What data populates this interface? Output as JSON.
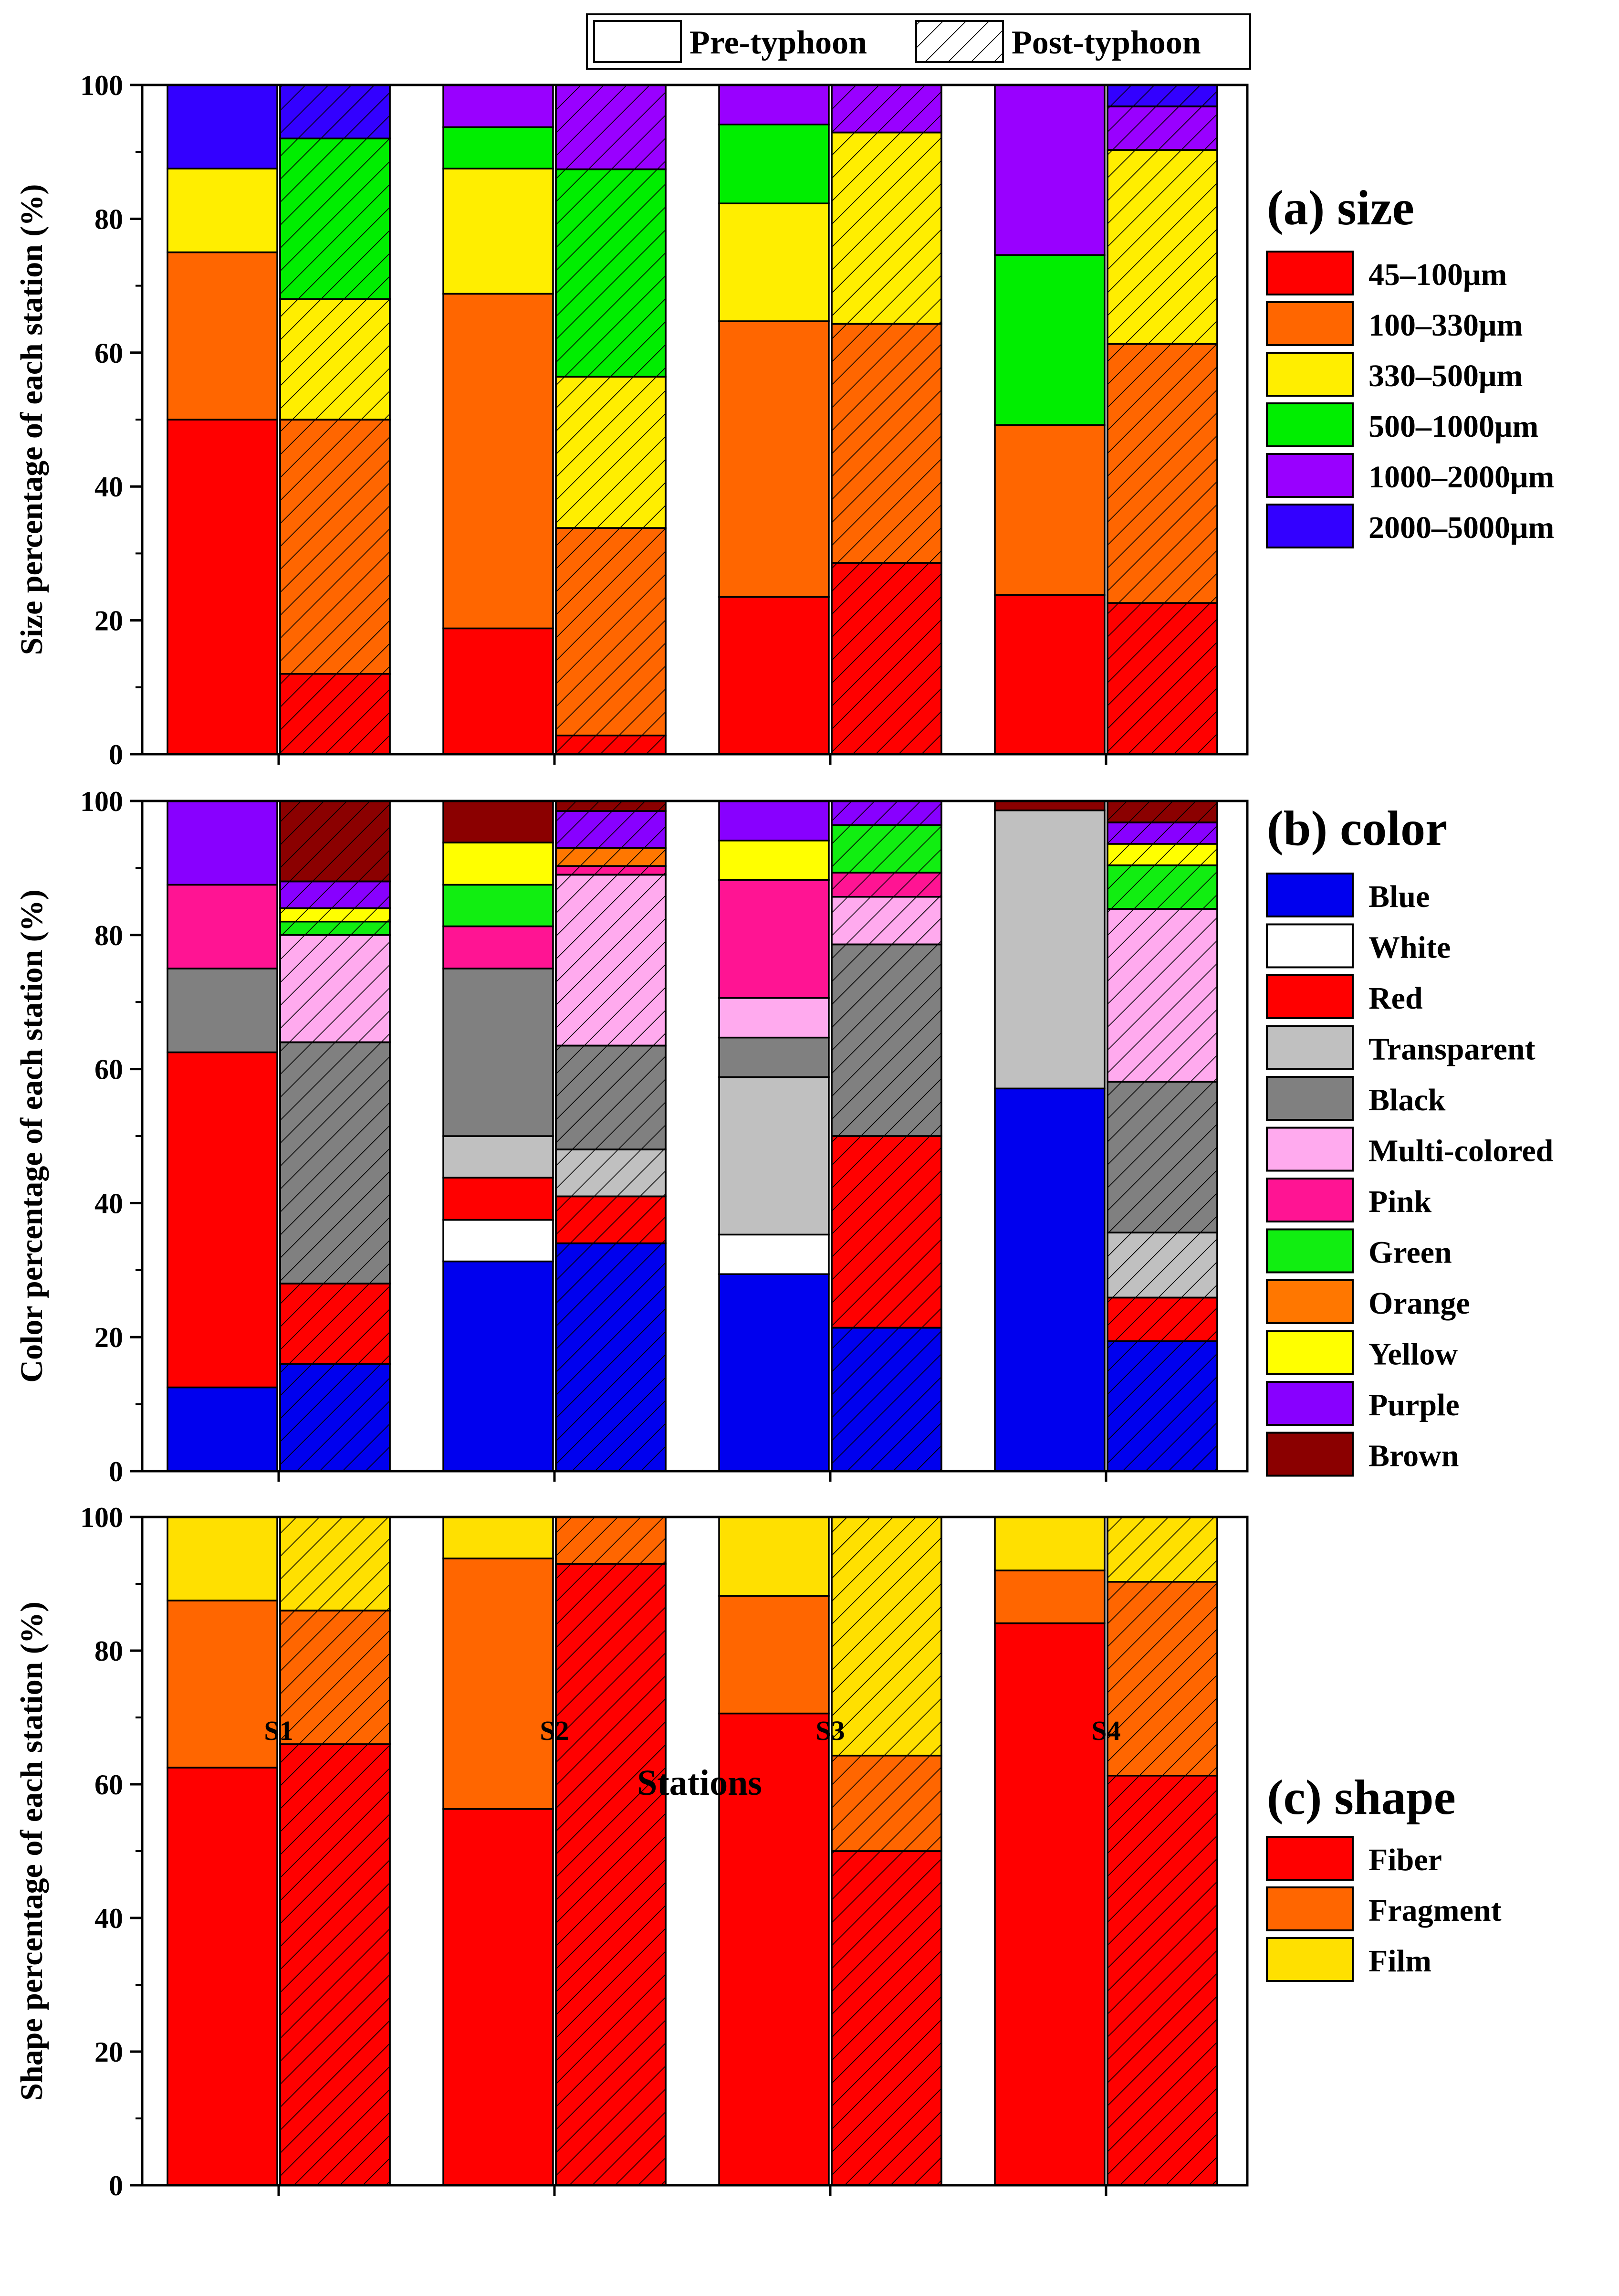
{
  "figure": {
    "xlabel": "Stations",
    "stations": [
      "S1",
      "S2",
      "S3",
      "S4"
    ],
    "hatch_legend": {
      "pre": "Pre-typhoon",
      "post": "Post-typhoon"
    },
    "y_ticks": [
      0,
      20,
      40,
      60,
      80,
      100
    ]
  },
  "chart_data": [
    {
      "id": "size",
      "type": "bar",
      "stacked": true,
      "title": "(a) size",
      "ylabel": "Size percentage of each station (%)",
      "xlabel": "Stations",
      "ylim": [
        0,
        100
      ],
      "categories": [
        "S1",
        "S2",
        "S3",
        "S4"
      ],
      "periods": [
        "Pre-typhoon",
        "Post-typhoon"
      ],
      "series": [
        {
          "name": "45–100μm",
          "color": "#FF0000",
          "pre": [
            50,
            18.8,
            23.5,
            23.8
          ],
          "post": [
            12,
            2.8,
            28.6,
            22.6
          ]
        },
        {
          "name": "100–330μm",
          "color": "#FF6600",
          "pre": [
            25,
            50,
            41.2,
            25.4
          ],
          "post": [
            38,
            31,
            35.7,
            38.7
          ]
        },
        {
          "name": "330–500μm",
          "color": "#FFEE00",
          "pre": [
            12.5,
            18.7,
            17.6,
            0
          ],
          "post": [
            18,
            22.6,
            28.6,
            29
          ]
        },
        {
          "name": "500–1000μm",
          "color": "#00EE00",
          "pre": [
            0,
            6.2,
            11.8,
            25.4
          ],
          "post": [
            24,
            31,
            0,
            0
          ]
        },
        {
          "name": "1000–2000μm",
          "color": "#9900FF",
          "pre": [
            0,
            6.3,
            5.9,
            25.4
          ],
          "post": [
            0,
            12.6,
            7.1,
            6.5
          ]
        },
        {
          "name": "2000–5000μm",
          "color": "#3300FF",
          "pre": [
            12.5,
            0,
            0,
            0
          ],
          "post": [
            8,
            0,
            0,
            3.2
          ]
        }
      ]
    },
    {
      "id": "color",
      "type": "bar",
      "stacked": true,
      "title": "(b) color",
      "ylabel": "Color percentage of each station (%)",
      "xlabel": "Stations",
      "ylim": [
        0,
        100
      ],
      "categories": [
        "S1",
        "S2",
        "S3",
        "S4"
      ],
      "periods": [
        "Pre-typhoon",
        "Post-typhoon"
      ],
      "series": [
        {
          "name": "Blue",
          "color": "#0000EE",
          "pre": [
            12.5,
            31.3,
            29.4,
            57.1
          ],
          "post": [
            16,
            34,
            21.4,
            19.4
          ]
        },
        {
          "name": "White",
          "color": "#FFFFFF",
          "pre": [
            0,
            6.2,
            5.9,
            0
          ],
          "post": [
            0,
            0,
            0,
            0
          ]
        },
        {
          "name": "Red",
          "color": "#FF0000",
          "pre": [
            50,
            6.3,
            0,
            0
          ],
          "post": [
            12,
            7,
            28.6,
            6.5
          ]
        },
        {
          "name": "Transparent",
          "color": "#C0C0C0",
          "pre": [
            0,
            6.2,
            23.5,
            41.5
          ],
          "post": [
            0,
            7,
            0,
            9.7
          ]
        },
        {
          "name": "Black",
          "color": "#808080",
          "pre": [
            12.5,
            25,
            5.9,
            0
          ],
          "post": [
            36,
            15.5,
            28.6,
            22.5
          ]
        },
        {
          "name": "Multi-colored",
          "color": "#FFAAEE",
          "pre": [
            0,
            0,
            5.9,
            0
          ],
          "post": [
            16,
            25.5,
            7.1,
            25.8
          ]
        },
        {
          "name": "Pink",
          "color": "#FF1493",
          "pre": [
            12.5,
            6.3,
            17.6,
            0
          ],
          "post": [
            0,
            1.3,
            3.6,
            0
          ]
        },
        {
          "name": "Green",
          "color": "#11EE11",
          "pre": [
            0,
            6.2,
            0,
            0
          ],
          "post": [
            2,
            0,
            7.1,
            6.5
          ]
        },
        {
          "name": "Orange",
          "color": "#FF7700",
          "pre": [
            0,
            0,
            0,
            0
          ],
          "post": [
            0,
            2.7,
            0,
            0
          ]
        },
        {
          "name": "Yellow",
          "color": "#FFFF00",
          "pre": [
            0,
            6.3,
            5.9,
            0
          ],
          "post": [
            2,
            0,
            0,
            3.2
          ]
        },
        {
          "name": "Purple",
          "color": "#8800FF",
          "pre": [
            12.5,
            0,
            5.9,
            0
          ],
          "post": [
            4,
            5.5,
            3.6,
            3.2
          ]
        },
        {
          "name": "Brown",
          "color": "#8B0000",
          "pre": [
            0,
            6.2,
            0,
            1.4
          ],
          "post": [
            12,
            1.5,
            0,
            3.2
          ]
        }
      ]
    },
    {
      "id": "shape",
      "type": "bar",
      "stacked": true,
      "title": "(c) shape",
      "ylabel": "Shape percentage of each station (%)",
      "xlabel": "Stations",
      "ylim": [
        0,
        100
      ],
      "categories": [
        "S1",
        "S2",
        "S3",
        "S4"
      ],
      "periods": [
        "Pre-typhoon",
        "Post-typhoon"
      ],
      "series": [
        {
          "name": "Fiber",
          "color": "#FF0000",
          "pre": [
            62.5,
            56.3,
            70.6,
            84.1
          ],
          "post": [
            66,
            93,
            50,
            61.3
          ]
        },
        {
          "name": "Fragment",
          "color": "#FF6600",
          "pre": [
            25,
            37.5,
            17.6,
            7.9
          ],
          "post": [
            20,
            7,
            14.3,
            29
          ]
        },
        {
          "name": "Film",
          "color": "#FFE000",
          "pre": [
            12.5,
            6.2,
            11.8,
            8
          ],
          "post": [
            14,
            0,
            35.7,
            9.7
          ]
        }
      ]
    }
  ]
}
